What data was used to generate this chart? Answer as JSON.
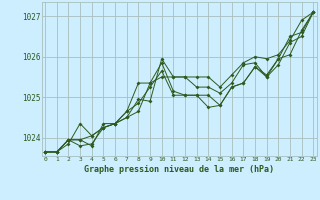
{
  "title": "Graphe pression niveau de la mer (hPa)",
  "background_color": "#cceeff",
  "grid_color": "#aabfbf",
  "line_color": "#2d5a1e",
  "x_ticks": [
    0,
    1,
    2,
    3,
    4,
    5,
    6,
    7,
    8,
    9,
    10,
    11,
    12,
    13,
    14,
    15,
    16,
    17,
    18,
    19,
    20,
    21,
    22,
    23
  ],
  "y_ticks": [
    1024,
    1025,
    1026,
    1027
  ],
  "ylim": [
    1023.55,
    1027.35
  ],
  "xlim": [
    -0.3,
    23.3
  ],
  "series": [
    [
      1023.65,
      1023.65,
      1023.85,
      1024.35,
      1024.05,
      1024.25,
      1024.35,
      1024.5,
      1024.65,
      1025.35,
      1025.85,
      1025.15,
      1025.05,
      1025.05,
      1025.05,
      1024.8,
      1025.25,
      1025.35,
      1025.75,
      1025.55,
      1025.95,
      1026.5,
      1026.6,
      1027.1
    ],
    [
      1023.65,
      1023.65,
      1023.95,
      1023.8,
      1023.85,
      1024.25,
      1024.35,
      1024.65,
      1024.85,
      1025.25,
      1025.65,
      1025.05,
      1025.05,
      1025.05,
      1024.75,
      1024.8,
      1025.25,
      1025.35,
      1025.75,
      1025.5,
      1025.95,
      1026.05,
      1026.65,
      1027.1
    ],
    [
      1023.65,
      1023.65,
      1023.95,
      1023.95,
      1023.8,
      1024.35,
      1024.35,
      1024.5,
      1024.95,
      1024.9,
      1025.95,
      1025.5,
      1025.5,
      1025.25,
      1025.25,
      1025.1,
      1025.35,
      1025.8,
      1025.85,
      1025.5,
      1025.8,
      1026.35,
      1026.5,
      1027.1
    ],
    [
      1023.65,
      1023.65,
      1023.95,
      1023.95,
      1024.05,
      1024.25,
      1024.35,
      1024.65,
      1025.35,
      1025.35,
      1025.5,
      1025.5,
      1025.5,
      1025.5,
      1025.5,
      1025.25,
      1025.55,
      1025.85,
      1026.0,
      1025.95,
      1026.05,
      1026.4,
      1026.9,
      1027.1
    ]
  ]
}
